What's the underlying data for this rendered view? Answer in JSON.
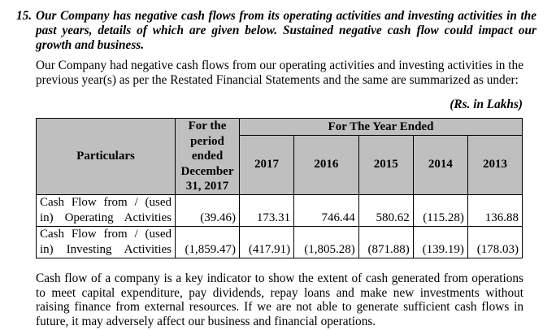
{
  "heading": {
    "number": "15.",
    "text": "Our Company has negative cash flows from its operating activities and investing activities in the past years, details of which are given below. Sustained negative cash flow could impact our growth and business."
  },
  "intro": "Our Company had negative cash flows from our operating activities and investing activities in the previous year(s) as per the Restated Financial Statements and the same are summarized as under:",
  "units": "(Rs. in Lakhs)",
  "table": {
    "col_particulars": "Particulars",
    "col_period": "For the period ended December 31, 2017",
    "col_year_group": "For The Year Ended",
    "years": [
      "2017",
      "2016",
      "2015",
      "2014",
      "2013"
    ],
    "rows": [
      {
        "label": "Cash Flow from / (used in) Operating Activities",
        "values": [
          "(39.46)",
          "173.31",
          "746.44",
          "580.62",
          "(115.28)",
          "136.88"
        ]
      },
      {
        "label": "Cash Flow from / (used in) Investing Activities",
        "values": [
          "(1,859.47)",
          "(417.91)",
          "(1,805.28)",
          "(871.88)",
          "(139.19)",
          "(178.03)"
        ]
      }
    ]
  },
  "closing": "Cash flow of a company is a key indicator to show the extent of cash generated from operations to meet capital expenditure, pay dividends, repay loans and make new investments without raising finance from external resources. If we are not able to generate sufficient cash flows in future, it may adversely affect our business and financial operations."
}
